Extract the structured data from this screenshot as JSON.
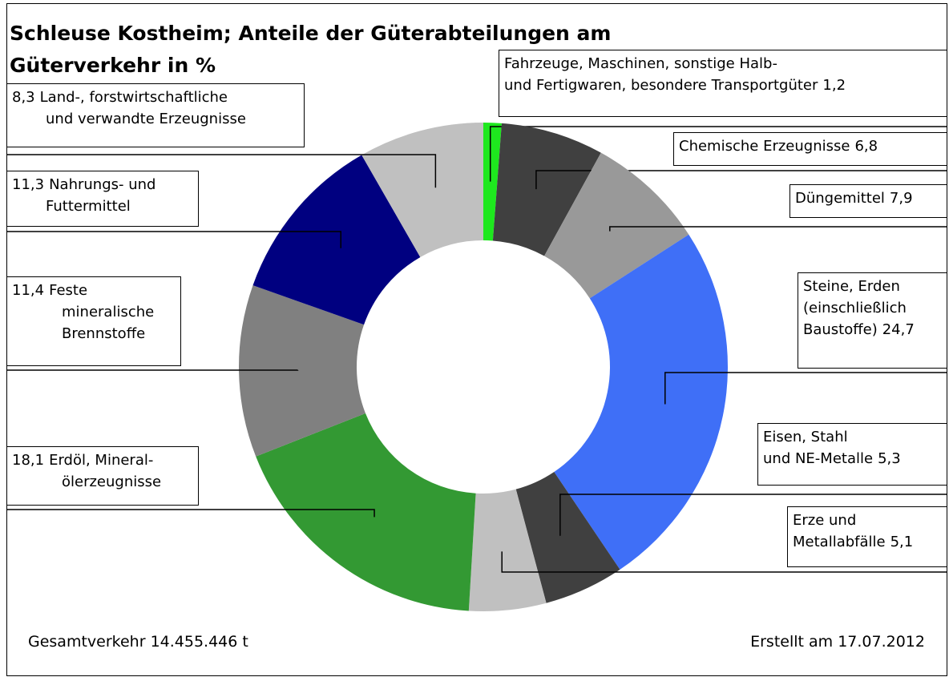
{
  "chart_data": {
    "type": "donut",
    "title": "Schleuse Kostheim; Anteile der Güterabteilungen am\nGüterverkehr in %",
    "categories": [
      "Fahrzeuge, Maschinen, sonstige Halb-\nund Fertigwaren, besondere Transportgüter",
      "Chemische Erzeugnisse",
      "Düngemittel",
      "Steine, Erden\n(einschließlich\nBaustoffe)",
      "Eisen, Stahl\nund NE-Metalle",
      "Erze und\nMetallabfälle",
      "Erdöl, Mineral-\nölerzeugnisse",
      "Feste\nmineralische\nBrennstoffe",
      "Nahrungs- und\nFuttermittel",
      "Land-, forstwirtschaftliche\nund verwandte Erzeugnisse"
    ],
    "values": [
      1.2,
      6.8,
      7.9,
      24.7,
      5.3,
      5.1,
      18.1,
      11.4,
      11.3,
      8.3
    ],
    "value_labels": [
      "1,2",
      "6,8",
      "7,9",
      "24,7",
      "5,3",
      "5,1",
      "18,1",
      "11,4",
      "11,3",
      "8,3"
    ],
    "colors": [
      "#1ee81e",
      "#404040",
      "#999999",
      "#3f6ff7",
      "#404040",
      "#c0c0c0",
      "#339933",
      "#808080",
      "#000080",
      "#c0c0c0"
    ],
    "annotations": [
      "Gesamtverkehr 14.455.446 t",
      "Erstellt am 17.07.2012"
    ]
  }
}
